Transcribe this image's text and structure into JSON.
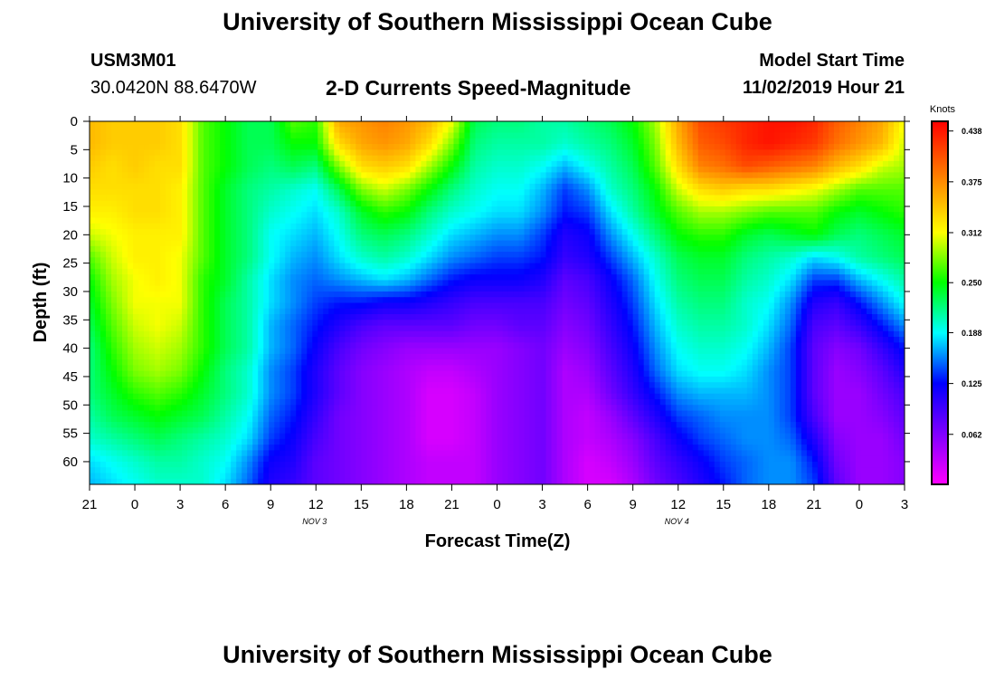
{
  "header": {
    "title": "University of Southern Mississippi Ocean Cube",
    "station_id": "USM3M01",
    "coordinates": "30.0420N 88.6470W",
    "subtitle": "2-D Currents Speed-Magnitude",
    "model_label": "Model Start Time",
    "model_time": "11/02/2019 Hour 21"
  },
  "footer": {
    "title": "University of Southern Mississippi Ocean Cube"
  },
  "chart_data": {
    "type": "heatmap",
    "title": "2-D Currents Speed-Magnitude",
    "xlabel": "Forecast Time(Z)",
    "ylabel": "Depth (ft)",
    "x_tick_labels": [
      "21",
      "0",
      "3",
      "6",
      "9",
      "12",
      "15",
      "18",
      "21",
      "0",
      "3",
      "6",
      "9",
      "12",
      "15",
      "18",
      "21",
      "0",
      "3"
    ],
    "x_range_hours": [
      0,
      54
    ],
    "date_labels": [
      {
        "label": "NOV 3",
        "hour": 15
      },
      {
        "label": "NOV 4",
        "hour": 39
      }
    ],
    "y_ticks": [
      0,
      5,
      10,
      15,
      20,
      25,
      30,
      35,
      40,
      45,
      50,
      55,
      60
    ],
    "y_range": [
      0,
      64
    ],
    "colorbar": {
      "label": "Knots",
      "ticks": [
        0.062,
        0.125,
        0.188,
        0.25,
        0.312,
        0.375,
        0.438
      ],
      "tick_labels": [
        "0.062",
        "0.125",
        "0.188",
        "0.250",
        "0.312",
        "0.375",
        "0.438"
      ],
      "range": [
        0,
        0.45
      ],
      "colors": [
        "#ff00ff",
        "#0000ff",
        "#00ffff",
        "#00ff00",
        "#ffff00",
        "#ff8c00",
        "#ff0000"
      ]
    },
    "grid_hours": [
      0,
      1.5,
      3,
      4.5,
      6,
      7.5,
      9,
      10.5,
      12,
      13.5,
      15,
      16.5,
      18,
      19.5,
      21,
      22.5,
      24,
      25.5,
      27,
      28.5,
      30,
      31.5,
      33,
      34.5,
      36,
      37.5,
      39,
      40.5,
      42,
      43.5,
      45,
      46.5,
      48,
      49.5,
      51,
      52.5,
      54
    ],
    "grid_depths": [
      0,
      4,
      8,
      12,
      16,
      20,
      24,
      28,
      32,
      36,
      40,
      44,
      48,
      52,
      56,
      60,
      64
    ],
    "values": [
      [
        0.35,
        0.34,
        0.34,
        0.34,
        0.33,
        0.27,
        0.25,
        0.23,
        0.23,
        0.27,
        0.26,
        0.36,
        0.37,
        0.38,
        0.37,
        0.35,
        0.31,
        0.23,
        0.22,
        0.22,
        0.21,
        0.21,
        0.22,
        0.23,
        0.25,
        0.29,
        0.36,
        0.41,
        0.42,
        0.43,
        0.44,
        0.44,
        0.43,
        0.4,
        0.38,
        0.36,
        0.31
      ],
      [
        0.35,
        0.34,
        0.34,
        0.34,
        0.33,
        0.27,
        0.25,
        0.23,
        0.23,
        0.25,
        0.25,
        0.33,
        0.36,
        0.37,
        0.36,
        0.33,
        0.28,
        0.22,
        0.21,
        0.21,
        0.21,
        0.2,
        0.21,
        0.22,
        0.24,
        0.28,
        0.35,
        0.4,
        0.41,
        0.43,
        0.44,
        0.43,
        0.42,
        0.39,
        0.37,
        0.35,
        0.3
      ],
      [
        0.34,
        0.33,
        0.34,
        0.33,
        0.33,
        0.27,
        0.25,
        0.23,
        0.22,
        0.23,
        0.22,
        0.28,
        0.33,
        0.34,
        0.33,
        0.29,
        0.25,
        0.21,
        0.2,
        0.2,
        0.19,
        0.17,
        0.19,
        0.21,
        0.23,
        0.27,
        0.33,
        0.38,
        0.39,
        0.41,
        0.4,
        0.39,
        0.38,
        0.35,
        0.33,
        0.3,
        0.29
      ],
      [
        0.33,
        0.33,
        0.33,
        0.33,
        0.32,
        0.27,
        0.24,
        0.22,
        0.21,
        0.2,
        0.19,
        0.23,
        0.28,
        0.3,
        0.28,
        0.25,
        0.22,
        0.2,
        0.19,
        0.19,
        0.17,
        0.14,
        0.16,
        0.2,
        0.22,
        0.25,
        0.3,
        0.33,
        0.34,
        0.33,
        0.33,
        0.32,
        0.31,
        0.29,
        0.27,
        0.27,
        0.27
      ],
      [
        0.32,
        0.32,
        0.33,
        0.33,
        0.32,
        0.27,
        0.24,
        0.22,
        0.2,
        0.19,
        0.18,
        0.2,
        0.24,
        0.26,
        0.25,
        0.22,
        0.2,
        0.19,
        0.18,
        0.18,
        0.16,
        0.13,
        0.14,
        0.18,
        0.21,
        0.24,
        0.27,
        0.29,
        0.29,
        0.28,
        0.27,
        0.27,
        0.27,
        0.25,
        0.24,
        0.25,
        0.26
      ],
      [
        0.3,
        0.31,
        0.32,
        0.32,
        0.32,
        0.27,
        0.24,
        0.22,
        0.19,
        0.18,
        0.17,
        0.19,
        0.22,
        0.23,
        0.22,
        0.2,
        0.18,
        0.17,
        0.16,
        0.16,
        0.14,
        0.11,
        0.12,
        0.16,
        0.19,
        0.22,
        0.25,
        0.26,
        0.26,
        0.24,
        0.23,
        0.24,
        0.25,
        0.23,
        0.22,
        0.23,
        0.24
      ],
      [
        0.27,
        0.3,
        0.32,
        0.32,
        0.31,
        0.27,
        0.24,
        0.22,
        0.19,
        0.17,
        0.16,
        0.18,
        0.2,
        0.21,
        0.2,
        0.18,
        0.16,
        0.15,
        0.14,
        0.14,
        0.13,
        0.1,
        0.11,
        0.14,
        0.17,
        0.2,
        0.23,
        0.24,
        0.24,
        0.22,
        0.21,
        0.2,
        0.18,
        0.19,
        0.21,
        0.22,
        0.23
      ],
      [
        0.25,
        0.29,
        0.31,
        0.32,
        0.31,
        0.26,
        0.24,
        0.21,
        0.18,
        0.16,
        0.15,
        0.16,
        0.17,
        0.18,
        0.17,
        0.15,
        0.13,
        0.12,
        0.12,
        0.12,
        0.11,
        0.08,
        0.09,
        0.12,
        0.15,
        0.19,
        0.22,
        0.23,
        0.23,
        0.21,
        0.2,
        0.18,
        0.14,
        0.14,
        0.17,
        0.19,
        0.21
      ],
      [
        0.24,
        0.28,
        0.31,
        0.31,
        0.31,
        0.26,
        0.23,
        0.21,
        0.18,
        0.16,
        0.14,
        0.13,
        0.13,
        0.12,
        0.12,
        0.11,
        0.1,
        0.09,
        0.09,
        0.09,
        0.09,
        0.07,
        0.08,
        0.11,
        0.14,
        0.18,
        0.21,
        0.22,
        0.22,
        0.2,
        0.19,
        0.16,
        0.11,
        0.1,
        0.13,
        0.16,
        0.19
      ],
      [
        0.23,
        0.27,
        0.3,
        0.31,
        0.3,
        0.26,
        0.23,
        0.21,
        0.17,
        0.15,
        0.13,
        0.11,
        0.09,
        0.08,
        0.08,
        0.08,
        0.08,
        0.07,
        0.07,
        0.08,
        0.08,
        0.06,
        0.07,
        0.1,
        0.13,
        0.17,
        0.2,
        0.21,
        0.21,
        0.2,
        0.18,
        0.15,
        0.09,
        0.08,
        0.1,
        0.13,
        0.16
      ],
      [
        0.22,
        0.26,
        0.29,
        0.3,
        0.29,
        0.26,
        0.23,
        0.21,
        0.17,
        0.15,
        0.12,
        0.09,
        0.07,
        0.06,
        0.05,
        0.05,
        0.05,
        0.05,
        0.05,
        0.06,
        0.07,
        0.05,
        0.06,
        0.09,
        0.12,
        0.16,
        0.19,
        0.2,
        0.2,
        0.19,
        0.17,
        0.14,
        0.08,
        0.06,
        0.07,
        0.1,
        0.13
      ],
      [
        0.22,
        0.25,
        0.28,
        0.29,
        0.28,
        0.25,
        0.22,
        0.2,
        0.16,
        0.14,
        0.11,
        0.08,
        0.06,
        0.05,
        0.04,
        0.03,
        0.03,
        0.04,
        0.05,
        0.06,
        0.07,
        0.04,
        0.05,
        0.08,
        0.11,
        0.15,
        0.18,
        0.19,
        0.19,
        0.18,
        0.16,
        0.14,
        0.08,
        0.05,
        0.06,
        0.08,
        0.11
      ],
      [
        0.22,
        0.24,
        0.26,
        0.27,
        0.26,
        0.24,
        0.22,
        0.2,
        0.16,
        0.14,
        0.11,
        0.08,
        0.06,
        0.05,
        0.04,
        0.02,
        0.02,
        0.03,
        0.05,
        0.06,
        0.07,
        0.04,
        0.04,
        0.07,
        0.1,
        0.13,
        0.16,
        0.17,
        0.17,
        0.17,
        0.16,
        0.14,
        0.08,
        0.05,
        0.05,
        0.07,
        0.09
      ],
      [
        0.21,
        0.23,
        0.24,
        0.25,
        0.24,
        0.23,
        0.21,
        0.19,
        0.15,
        0.13,
        0.1,
        0.07,
        0.06,
        0.05,
        0.04,
        0.02,
        0.02,
        0.03,
        0.05,
        0.06,
        0.07,
        0.04,
        0.03,
        0.05,
        0.08,
        0.11,
        0.14,
        0.15,
        0.16,
        0.16,
        0.16,
        0.14,
        0.09,
        0.05,
        0.05,
        0.06,
        0.08
      ],
      [
        0.2,
        0.21,
        0.22,
        0.23,
        0.22,
        0.21,
        0.2,
        0.18,
        0.14,
        0.12,
        0.09,
        0.07,
        0.06,
        0.05,
        0.04,
        0.02,
        0.02,
        0.03,
        0.05,
        0.06,
        0.07,
        0.04,
        0.03,
        0.04,
        0.06,
        0.09,
        0.12,
        0.14,
        0.15,
        0.16,
        0.16,
        0.15,
        0.11,
        0.06,
        0.05,
        0.05,
        0.07
      ],
      [
        0.18,
        0.19,
        0.2,
        0.21,
        0.21,
        0.2,
        0.19,
        0.16,
        0.12,
        0.11,
        0.08,
        0.07,
        0.06,
        0.05,
        0.04,
        0.03,
        0.03,
        0.03,
        0.05,
        0.06,
        0.07,
        0.04,
        0.02,
        0.03,
        0.05,
        0.08,
        0.1,
        0.12,
        0.14,
        0.15,
        0.16,
        0.16,
        0.13,
        0.07,
        0.05,
        0.05,
        0.06
      ],
      [
        0.17,
        0.18,
        0.19,
        0.2,
        0.2,
        0.2,
        0.18,
        0.15,
        0.11,
        0.1,
        0.08,
        0.07,
        0.06,
        0.05,
        0.04,
        0.03,
        0.03,
        0.03,
        0.05,
        0.06,
        0.07,
        0.04,
        0.02,
        0.02,
        0.04,
        0.07,
        0.09,
        0.11,
        0.13,
        0.15,
        0.16,
        0.16,
        0.14,
        0.08,
        0.05,
        0.05,
        0.06
      ]
    ]
  }
}
